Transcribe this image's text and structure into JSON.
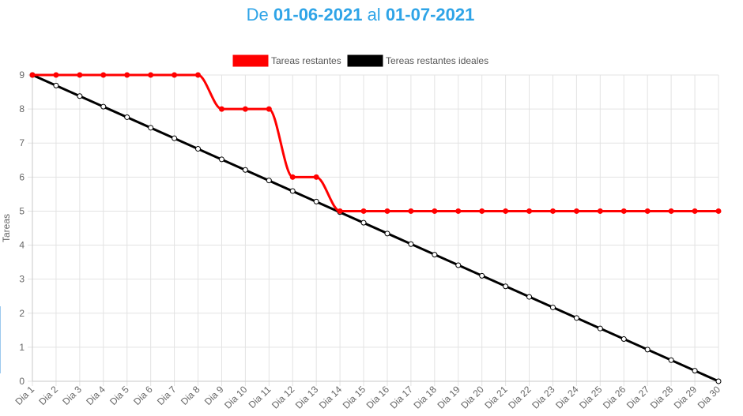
{
  "header": {
    "prefix": "De",
    "start_date": "01-06-2021",
    "connector": "al",
    "end_date": "01-07-2021"
  },
  "colors": {
    "title": "#2fa4e7",
    "actual": "#ff0000",
    "ideal": "#000000"
  },
  "chart_data": {
    "type": "line",
    "title": "De 01-06-2021 al 01-07-2021",
    "xlabel": "",
    "ylabel": "Tareas",
    "ylim": [
      0,
      9
    ],
    "yticks": [
      0,
      1,
      2,
      3,
      4,
      5,
      6,
      7,
      8,
      9
    ],
    "grid": true,
    "legend_position": "top-center",
    "categories": [
      "Dia 1",
      "Dia 2",
      "Dia 3",
      "Dia 4",
      "Dia 5",
      "Dia 6",
      "Dia 7",
      "Dia 8",
      "Dia 9",
      "Dia 10",
      "Dia 11",
      "Dia 12",
      "Dia 13",
      "Dia 14",
      "Dia 15",
      "Dia 16",
      "Dia 17",
      "Dia 18",
      "Dia 19",
      "Dia 20",
      "Dia 21",
      "Dia 22",
      "Dia 23",
      "Dia 24",
      "Dia 25",
      "Dia 26",
      "Dia 27",
      "Dia 28",
      "Dia 29",
      "Dia 30"
    ],
    "series": [
      {
        "name": "Tareas restantes",
        "color": "#ff0000",
        "values": [
          9,
          9,
          9,
          9,
          9,
          9,
          9,
          9,
          8,
          8,
          8,
          6,
          6,
          5,
          5,
          5,
          5,
          5,
          5,
          5,
          5,
          5,
          5,
          5,
          5,
          5,
          5,
          5,
          5,
          5
        ]
      },
      {
        "name": "Tereas restantes ideales",
        "color": "#000000",
        "values": [
          9,
          8.69,
          8.38,
          8.07,
          7.76,
          7.45,
          7.14,
          6.83,
          6.52,
          6.21,
          5.9,
          5.59,
          5.28,
          4.97,
          4.66,
          4.34,
          4.03,
          3.72,
          3.41,
          3.1,
          2.79,
          2.48,
          2.17,
          1.86,
          1.55,
          1.24,
          0.93,
          0.62,
          0.31,
          0
        ]
      }
    ]
  }
}
